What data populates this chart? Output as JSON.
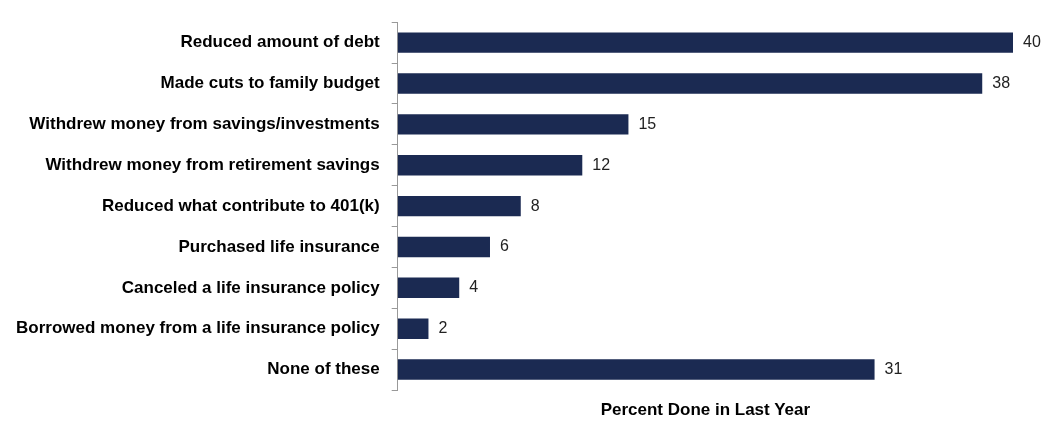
{
  "chart_data": {
    "type": "bar",
    "orientation": "horizontal",
    "xlabel": "Percent Done in Last Year",
    "categories": [
      "Reduced amount of debt",
      "Made cuts to family budget",
      "Withdrew money from savings/investments",
      "Withdrew money from retirement savings",
      "Reduced what contribute to 401(k)",
      "Purchased life insurance",
      "Canceled a life insurance policy",
      "Borrowed money from a life insurance policy",
      "None of these"
    ],
    "values": [
      40,
      38,
      15,
      12,
      8,
      6,
      4,
      2,
      31
    ],
    "color": "#1b2a52",
    "data_labels": true,
    "legend": false,
    "tick_labels": "y"
  }
}
